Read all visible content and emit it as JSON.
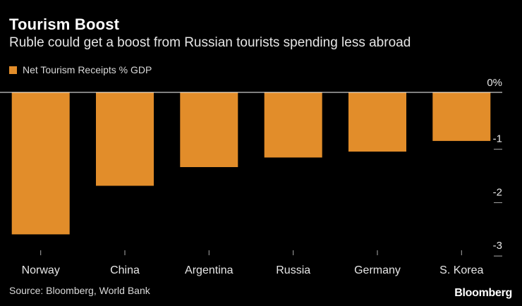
{
  "chart_data": {
    "type": "bar",
    "title": "Tourism Boost",
    "subtitle": "Ruble could get a boost from Russian tourists spending less abroad",
    "categories": [
      "Norway",
      "China",
      "Argentina",
      "Russia",
      "Germany",
      "S. Korea"
    ],
    "series": [
      {
        "name": "Net Tourism Receipts % GDP",
        "values": [
          -2.66,
          -1.75,
          -1.4,
          -1.22,
          -1.11,
          -0.91
        ]
      }
    ],
    "y_ticks": [
      "0%",
      "-1",
      "-2",
      "-3"
    ],
    "y_tick_values": [
      0,
      -1,
      -2,
      -3
    ],
    "ylim": [
      -3,
      0
    ],
    "legend": "top-left",
    "grid": false,
    "colors": {
      "bar": "#e28d2a",
      "background": "#000000",
      "zero_line": "#ffffff",
      "tick": "#aaaaaa"
    }
  },
  "source": "Source: Bloomberg, World Bank",
  "brand": "Bloomberg"
}
